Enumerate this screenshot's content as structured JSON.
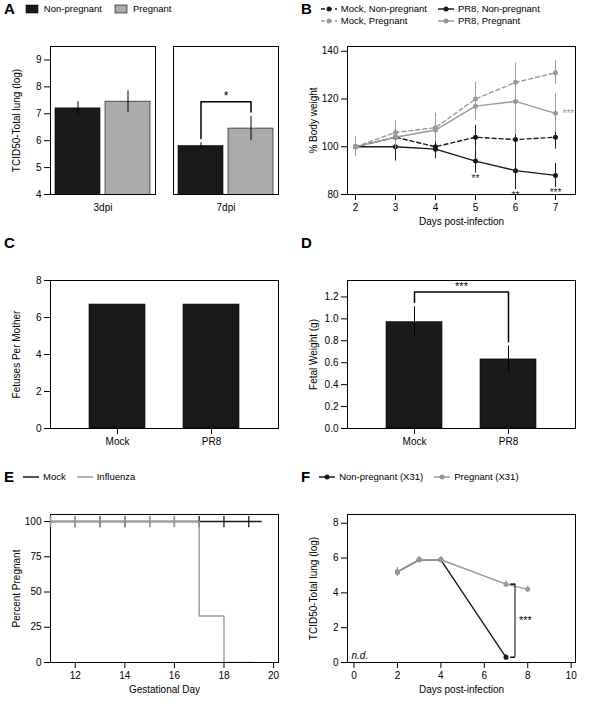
{
  "chart_data": [
    {
      "type": "bar",
      "title": "A",
      "categories": [
        "3dpi",
        "7dpi"
      ],
      "series": [
        {
          "name": "Non-pregnant",
          "color": "#1a1a1a",
          "values": [
            7.2,
            5.8
          ],
          "errors": [
            0.25,
            0.12
          ]
        },
        {
          "name": "Pregnant",
          "color": "#aaaaaa",
          "values": [
            7.45,
            6.45
          ],
          "errors": [
            0.4,
            0.45
          ]
        }
      ],
      "ylabel": "TCID50-Total lung (log)",
      "ylim": [
        4,
        9.5
      ],
      "yticks": [
        4,
        5,
        6,
        7,
        8,
        9
      ],
      "legend": "top",
      "annotations": [
        {
          "text": "*",
          "category": "7dpi"
        }
      ]
    },
    {
      "type": "line",
      "title": "B",
      "x": [
        2,
        3,
        4,
        5,
        6,
        7
      ],
      "series": [
        {
          "name": "Mock, Non-pregnant",
          "color": "#1a1a1a",
          "line_style": "dashed",
          "marker": "circle",
          "values": [
            100,
            104,
            100,
            104,
            103,
            104
          ],
          "errors": [
            4,
            6,
            3,
            5,
            5,
            5
          ]
        },
        {
          "name": "PR8, Non-pregnant",
          "color": "#1a1a1a",
          "line_style": "solid",
          "marker": "circle",
          "values": [
            100,
            100,
            99,
            94,
            90,
            88
          ],
          "errors": [
            3,
            6,
            4,
            5,
            8,
            5
          ]
        },
        {
          "name": "Mock, Pregnant",
          "color": "#999999",
          "line_style": "dashed",
          "marker": "circle",
          "values": [
            100,
            106,
            108,
            120,
            127,
            131
          ],
          "errors": [
            4,
            5,
            6,
            7,
            8,
            5
          ]
        },
        {
          "name": "PR8, Pregnant",
          "color": "#999999",
          "line_style": "solid",
          "marker": "circle",
          "values": [
            100,
            104,
            107,
            117,
            119,
            114
          ],
          "errors": [
            4,
            5,
            5,
            6,
            14,
            8
          ]
        }
      ],
      "xlabel": "Days post-infection",
      "ylabel": "% Body weight",
      "xlim": [
        1.8,
        7.5
      ],
      "xticks": [
        2,
        3,
        4,
        5,
        6,
        7
      ],
      "ylim": [
        80,
        142
      ],
      "yticks": [
        80,
        100,
        120,
        140
      ],
      "legend": "top",
      "annotations": [
        {
          "text": "**",
          "x": 5,
          "series": "PR8, Non-pregnant"
        },
        {
          "text": "**",
          "x": 6,
          "series": "PR8, Non-pregnant"
        },
        {
          "text": "***",
          "x": 7,
          "series": "PR8, Non-pregnant"
        },
        {
          "text": "***",
          "x": 7,
          "series": "PR8, Pregnant"
        }
      ]
    },
    {
      "type": "bar",
      "title": "C",
      "categories": [
        "Mock",
        "PR8"
      ],
      "values": [
        6.7,
        6.7
      ],
      "color": "#1a1a1a",
      "ylabel": "Fetuses Per Mother",
      "ylim": [
        0,
        8
      ],
      "yticks": [
        0,
        2,
        4,
        6,
        8
      ]
    },
    {
      "type": "bar",
      "title": "D",
      "categories": [
        "Mock",
        "PR8"
      ],
      "values": [
        0.97,
        0.63
      ],
      "errors": [
        0.14,
        0.12
      ],
      "color": "#1a1a1a",
      "ylabel": "Fetal Weight (g)",
      "ylim": [
        0,
        1.35
      ],
      "yticks": [
        {
          "value": 0,
          "label": "0.0"
        },
        0.2,
        0.4,
        0.6,
        0.8,
        {
          "value": 1,
          "label": "1.0"
        },
        1.2
      ],
      "annotations": [
        {
          "text": "***",
          "between": [
            "Mock",
            "PR8"
          ]
        }
      ]
    },
    {
      "type": "line",
      "title": "E",
      "series": [
        {
          "name": "Mock",
          "color": "#1a1a1a",
          "x": [
            11,
            19.5
          ],
          "values": [
            100,
            100
          ],
          "censor_x": [
            11,
            12,
            13,
            14,
            15,
            16,
            17,
            18,
            19
          ]
        },
        {
          "name": "Influenza",
          "color": "#999999",
          "x": [
            11,
            17,
            17,
            18,
            18,
            19.2
          ],
          "values": [
            100,
            100,
            33,
            33,
            0,
            0
          ],
          "censor_x": [
            11,
            12,
            13,
            14,
            15,
            16
          ]
        }
      ],
      "xlabel": "Gestational Day",
      "ylabel": "Percent Pregnant",
      "xlim": [
        11,
        20.2
      ],
      "xticks": [
        12,
        14,
        16,
        18,
        20
      ],
      "ylim": [
        0,
        105
      ],
      "yticks": [
        0,
        25,
        50,
        75,
        100
      ],
      "legend": "top"
    },
    {
      "type": "line",
      "title": "F",
      "series": [
        {
          "name": "Non-pregnant (X31)",
          "color": "#1a1a1a",
          "marker": "circle",
          "x": [
            2,
            3,
            4,
            7
          ],
          "values": [
            5.2,
            5.9,
            5.9,
            0.3
          ],
          "errors": [
            0.25,
            0.15,
            0.15,
            0.15
          ]
        },
        {
          "name": "Pregnant (X31)",
          "color": "#999999",
          "marker": "circle",
          "x": [
            2,
            3,
            4,
            7,
            8
          ],
          "values": [
            5.2,
            5.9,
            5.9,
            4.5,
            4.2
          ],
          "errors": [
            0.25,
            0.15,
            0.15,
            0.2,
            0.2
          ]
        }
      ],
      "xlabel": "Days post-infection",
      "ylabel": "TCID50-Total lung (log)",
      "xlim": [
        -0.3,
        10.2
      ],
      "xticks": [
        0,
        2,
        4,
        6,
        8,
        10
      ],
      "ylim": [
        0,
        8.5
      ],
      "yticks": [
        0,
        2,
        4,
        6,
        8
      ],
      "legend": "top",
      "annotations": [
        {
          "text": "n.d."
        },
        {
          "text": "***",
          "x": 7
        }
      ]
    }
  ]
}
